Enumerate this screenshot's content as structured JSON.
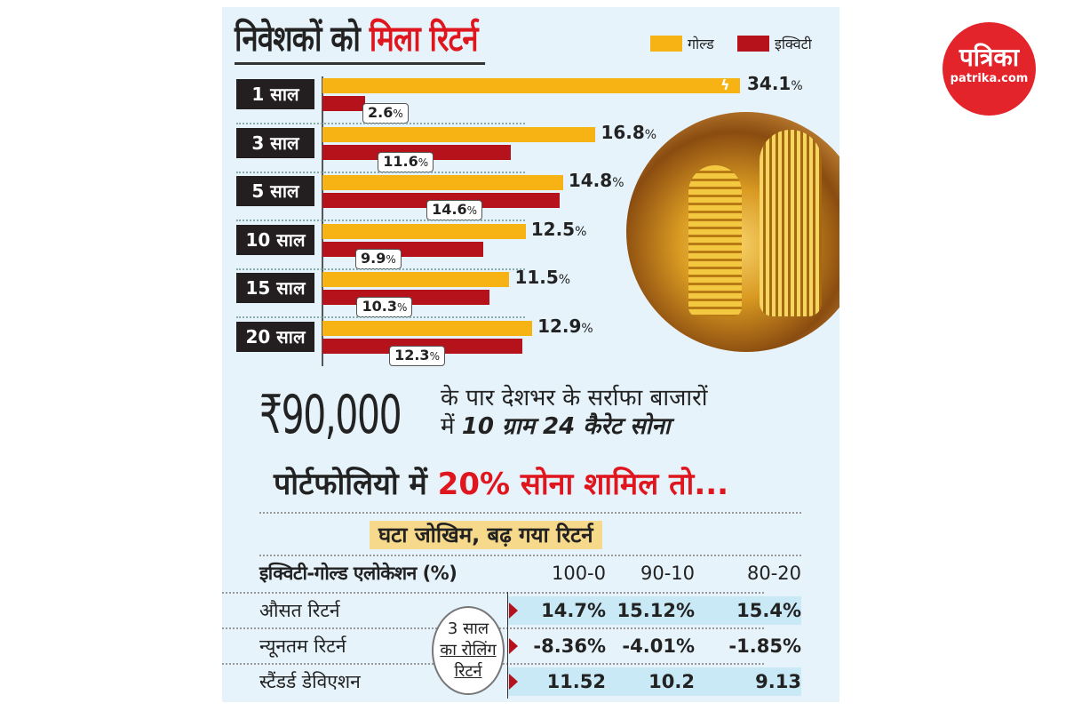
{
  "title": {
    "part1": "निवेशकों को",
    "part2": "मिला रिटर्न"
  },
  "legend": {
    "gold": "गोल्ड",
    "equity": "इक्विटी"
  },
  "colors": {
    "gold": "#f7b214",
    "equity": "#b5121b",
    "accent": "#e0161e"
  },
  "chart_data": {
    "type": "bar",
    "title": "निवेशकों को मिला रिटर्न",
    "categories": [
      "1 साल",
      "3 साल",
      "5 साल",
      "10 साल",
      "15 साल",
      "20 साल"
    ],
    "series": [
      {
        "name": "गोल्ड",
        "values": [
          34.1,
          16.8,
          14.8,
          12.5,
          11.5,
          12.9
        ],
        "labels": [
          "34.1",
          "16.8",
          "14.8",
          "12.5",
          "11.5",
          "12.9"
        ]
      },
      {
        "name": "इक्विटी",
        "values": [
          2.6,
          11.6,
          14.6,
          9.9,
          10.3,
          12.3
        ],
        "labels": [
          "2.6",
          "11.6",
          "14.6",
          "9.9",
          "10.3",
          "12.3"
        ]
      }
    ],
    "unit": "%",
    "orientation": "horizontal",
    "legend_placement": "top-right"
  },
  "price": {
    "value": "₹90,000",
    "line1": "के पार देशभर के सर्राफा बाजारों",
    "line2_prefix": "में",
    "line2_bold": "10 ग्राम 24 कैरेट सोना"
  },
  "portfolio": {
    "prefix": "पोर्टफोलियो में",
    "highlight": "20% सोना शामिल तो..."
  },
  "subheading": "घटा जोखिम, बढ़ गया रिटर्न",
  "table": {
    "header": {
      "label": "इक्विटी-गोल्ड एलोकेशन (%)",
      "cols": [
        "100-0",
        "90-10",
        "80-20"
      ]
    },
    "rows": [
      {
        "label": "औसत रिटर्न",
        "values": [
          "14.7%",
          "15.12%",
          "15.4%"
        ]
      },
      {
        "label": "न्यूनतम रिटर्न",
        "values": [
          "-8.36%",
          "-4.01%",
          "-1.85%"
        ]
      },
      {
        "label": "स्टैंडर्ड डेविएशन",
        "values": [
          "11.52",
          "10.2",
          "9.13"
        ]
      }
    ],
    "note": {
      "l1": "3 साल",
      "l2": "का रोलिंग",
      "l3": "रिटर्न"
    }
  },
  "logo": {
    "name": "पत्रिका",
    "url": "patrika.com"
  }
}
